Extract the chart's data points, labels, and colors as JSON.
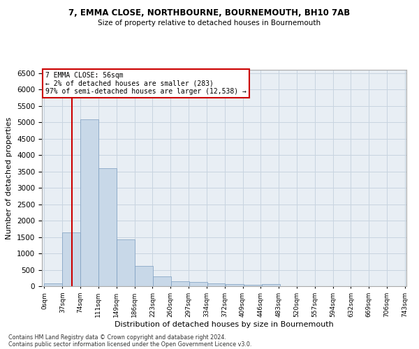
{
  "title1": "7, EMMA CLOSE, NORTHBOURNE, BOURNEMOUTH, BH10 7AB",
  "title2": "Size of property relative to detached houses in Bournemouth",
  "xlabel": "Distribution of detached houses by size in Bournemouth",
  "ylabel": "Number of detached properties",
  "footer1": "Contains HM Land Registry data © Crown copyright and database right 2024.",
  "footer2": "Contains public sector information licensed under the Open Government Licence v3.0.",
  "annotation_title": "7 EMMA CLOSE: 56sqm",
  "annotation_line1": "← 2% of detached houses are smaller (283)",
  "annotation_line2": "97% of semi-detached houses are larger (12,538) →",
  "property_size": 56,
  "bar_color": "#c8d8e8",
  "bar_edge_color": "#7a9cbf",
  "bar_left_edges": [
    0,
    37,
    74,
    111,
    149,
    186,
    223,
    260,
    297,
    334,
    372,
    409,
    446,
    483,
    520,
    557,
    594,
    632,
    669,
    706
  ],
  "bar_heights": [
    75,
    1650,
    5080,
    3600,
    1420,
    620,
    300,
    155,
    120,
    80,
    60,
    50,
    65,
    10,
    5,
    5,
    3,
    2,
    1,
    1
  ],
  "bin_width": 37,
  "tick_labels": [
    "0sqm",
    "37sqm",
    "74sqm",
    "111sqm",
    "149sqm",
    "186sqm",
    "223sqm",
    "260sqm",
    "297sqm",
    "334sqm",
    "372sqm",
    "409sqm",
    "446sqm",
    "483sqm",
    "520sqm",
    "557sqm",
    "594sqm",
    "632sqm",
    "669sqm",
    "706sqm",
    "743sqm"
  ],
  "ylim": [
    0,
    6600
  ],
  "yticks": [
    0,
    500,
    1000,
    1500,
    2000,
    2500,
    3000,
    3500,
    4000,
    4500,
    5000,
    5500,
    6000,
    6500
  ],
  "annotation_box_color": "#ffffff",
  "annotation_box_edge": "#cc0000",
  "vline_color": "#cc0000",
  "grid_color": "#c8d4e0",
  "background_color": "#e8eef4"
}
